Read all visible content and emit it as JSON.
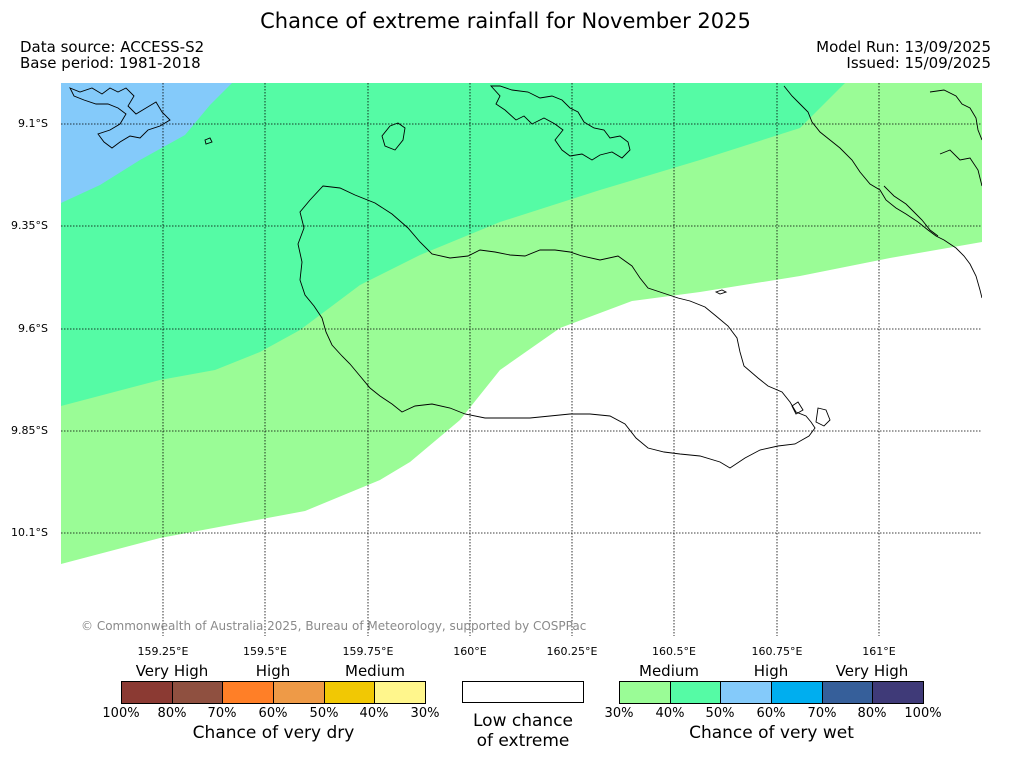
{
  "title": "Chance of extreme rainfall for November 2025",
  "meta": {
    "data_source": "Data source: ACCESS-S2",
    "base_period": "Base period: 1981-2018",
    "model_run": "Model Run: 13/09/2025",
    "issued": "Issued: 15/09/2025"
  },
  "map": {
    "lat_labels": [
      "9.1°S",
      "9.35°S",
      "9.6°S",
      "9.85°S",
      "10.1°S"
    ],
    "lon_labels": [
      "159.25°E",
      "159.5°E",
      "159.75°E",
      "160°E",
      "160.25°E",
      "160.5°E",
      "160.75°E",
      "161°E"
    ],
    "zone_colors": {
      "wet_30_40": "#9afc96",
      "wet_40_50": "#55fba5",
      "wet_50_60": "#84cafa",
      "low": "#ffffff"
    },
    "copyright": "© Commonwealth of Australia 2025, Bureau of Meteorology, supported by COSPPac"
  },
  "legend": {
    "dry": {
      "categories": [
        "Very High",
        "High",
        "Medium"
      ],
      "colors": [
        "#8b3a33",
        "#8f5040",
        "#ff7f27",
        "#ee9a47",
        "#f1c804",
        "#fff68c"
      ],
      "ticks": [
        "100%",
        "80%",
        "70%",
        "60%",
        "50%",
        "40%",
        "30%"
      ],
      "caption": "Chance of very dry"
    },
    "low": {
      "caption_line1": "Low chance",
      "caption_line2": "of extreme"
    },
    "wet": {
      "categories": [
        "Medium",
        "High",
        "Very High"
      ],
      "colors": [
        "#9afc96",
        "#55fba5",
        "#84cafa",
        "#00aeef",
        "#365f9a",
        "#3f3a78"
      ],
      "ticks": [
        "30%",
        "40%",
        "50%",
        "60%",
        "70%",
        "80%",
        "100%"
      ],
      "caption": "Chance of very wet"
    }
  }
}
